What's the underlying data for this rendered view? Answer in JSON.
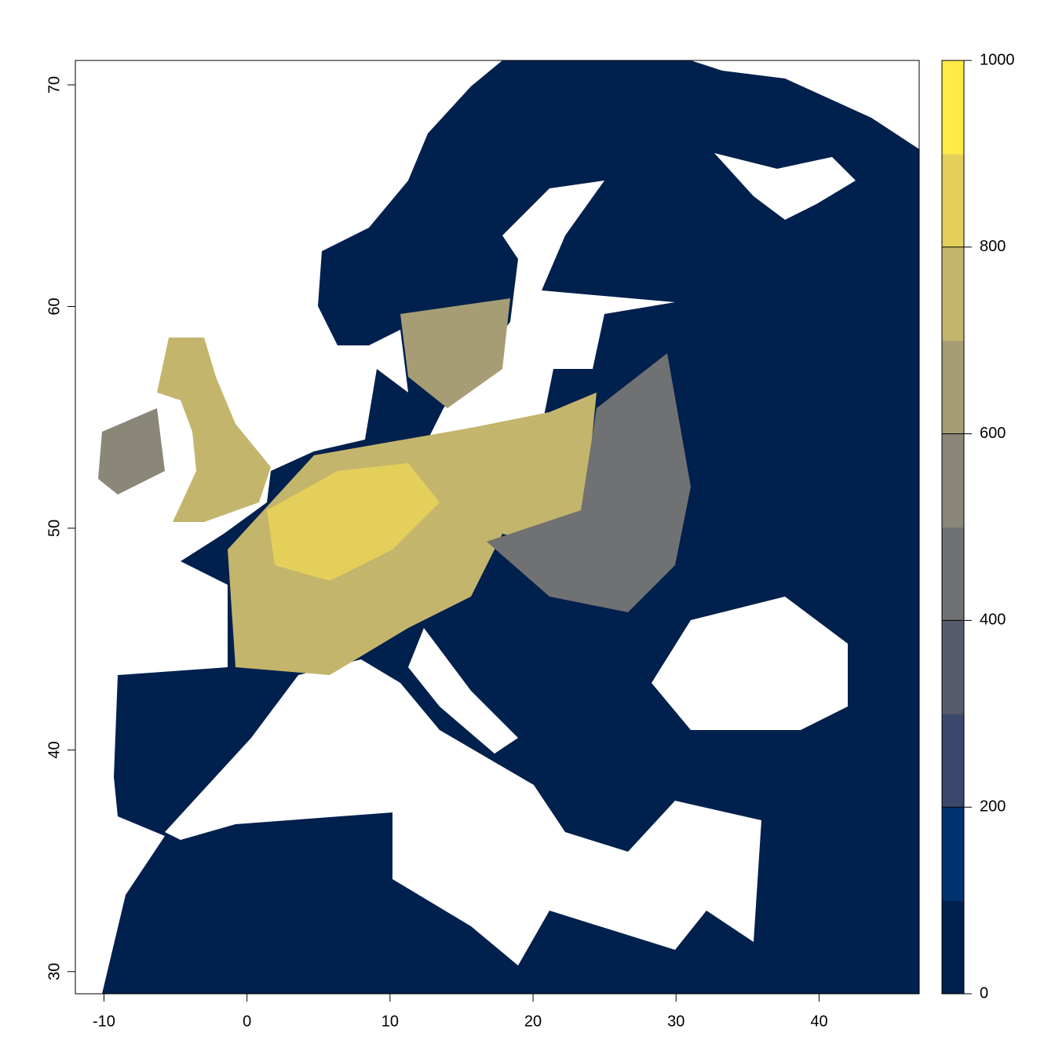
{
  "chart_data": {
    "type": "raster",
    "xlim": [
      -12,
      47
    ],
    "ylim": [
      29,
      71.1
    ],
    "xticks": [
      -10,
      0,
      10,
      20,
      30,
      40
    ],
    "yticks": [
      30,
      40,
      50,
      60,
      70
    ],
    "colorbar": {
      "lim": [
        0,
        1000
      ],
      "ticks": [
        0,
        200,
        400,
        600,
        800,
        1000
      ],
      "breaks": [
        0,
        100,
        200,
        300,
        400,
        500,
        600,
        700,
        800,
        900,
        1000
      ],
      "colors": [
        "#00204d",
        "#00336f",
        "#39486b",
        "#575c6d",
        "#707173",
        "#8a8779",
        "#a69d75",
        "#c4b56c",
        "#e4cf5b",
        "#ffea46"
      ]
    }
  }
}
